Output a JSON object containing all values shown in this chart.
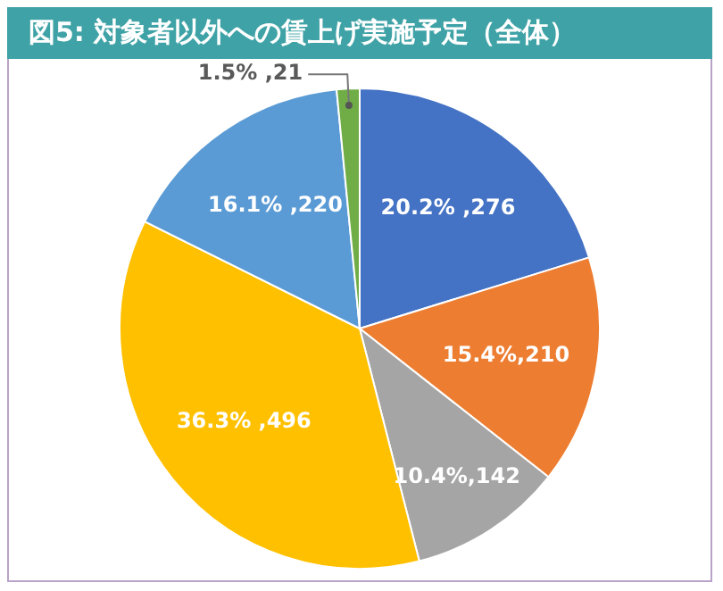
{
  "chart_data": {
    "type": "pie",
    "title": "図5: 対象者以外への賃上げ実施予定（全体）",
    "categories": [
      null,
      null,
      null,
      null,
      null,
      null
    ],
    "values": [
      276,
      210,
      142,
      496,
      220,
      21
    ],
    "colors": [
      "#4472c4",
      "#ed7d31",
      "#a5a5a5",
      "#ffc000",
      "#5b9bd5",
      "#70ad47"
    ],
    "value_labels": [
      "20.2% ,276",
      "15.4%,210",
      "10.4%,142",
      "36.3% ,496",
      "16.1% ,220",
      "1.5% ,21"
    ],
    "legend": false
  }
}
